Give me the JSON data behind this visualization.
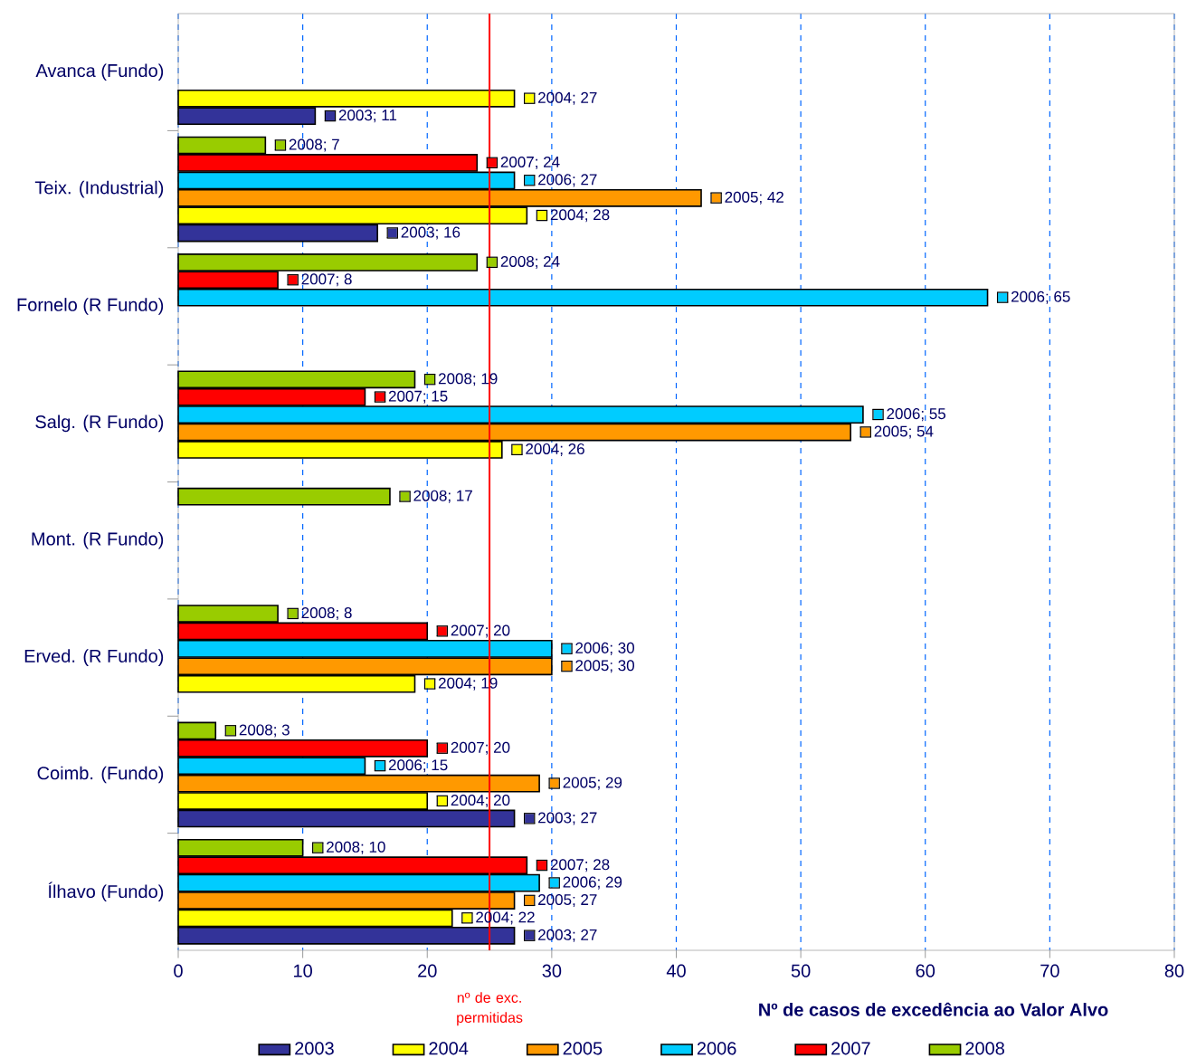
{
  "chart_data": {
    "type": "bar",
    "orientation": "horizontal",
    "xlabel": "Nº de casos de excedência ao Valor Alvo",
    "categories": [
      "Avanca (Fundo)",
      "Teix. (Industrial)",
      "Fornelo (R Fundo)",
      "Salg. (R Fundo)",
      "Mont. (R Fundo)",
      "Erved. (R Fundo)",
      "Coimb. (Fundo)",
      "Ílhavo (Fundo)"
    ],
    "series": [
      {
        "name": "2003",
        "color": "#333399",
        "values": [
          11,
          16,
          null,
          null,
          null,
          null,
          27,
          27
        ],
        "value_labels": [
          "2003; 11",
          "2003; 16",
          null,
          null,
          null,
          null,
          "2003; 27",
          "2003; 27"
        ]
      },
      {
        "name": "2004",
        "color": "#ffff00",
        "values": [
          27,
          28,
          null,
          26,
          null,
          19,
          20,
          22
        ],
        "value_labels": [
          "2004; 27",
          "2004; 28",
          null,
          "2004; 26",
          null,
          "2004; 19",
          "2004; 20",
          "2004; 22"
        ]
      },
      {
        "name": "2005",
        "color": "#ff9900",
        "values": [
          null,
          42,
          null,
          54,
          null,
          30,
          29,
          27
        ],
        "value_labels": [
          null,
          "2005; 42",
          null,
          "2005; 54",
          null,
          "2005; 30",
          "2005; 29",
          "2005; 27"
        ]
      },
      {
        "name": "2006",
        "color": "#00ccff",
        "values": [
          null,
          27,
          65,
          55,
          null,
          30,
          15,
          29
        ],
        "value_labels": [
          null,
          "2006; 27",
          "2006; 65",
          "2006; 55",
          null,
          "2006; 30",
          "2006; 15",
          "2006; 29"
        ]
      },
      {
        "name": "2007",
        "color": "#ff0000",
        "values": [
          null,
          24,
          8,
          15,
          null,
          20,
          20,
          28
        ],
        "value_labels": [
          null,
          "2007; 24",
          "2007; 8",
          "2007; 15",
          null,
          "2007; 20",
          "2007; 20",
          "2007; 28"
        ]
      },
      {
        "name": "2008",
        "color": "#99cc00",
        "values": [
          null,
          7,
          24,
          19,
          17,
          8,
          3,
          10
        ],
        "value_labels": [
          null,
          "2008; 7",
          "2008; 24",
          "2008; 19",
          "2008; 17",
          "2008; 8",
          "2008; 3",
          "2008; 10"
        ]
      }
    ],
    "xlim": [
      0,
      80
    ],
    "xticks": [
      0,
      10,
      20,
      30,
      40,
      50,
      60,
      70,
      80
    ],
    "grid": "x",
    "legend": "bottom",
    "ref_lines": [
      {
        "axis": "x",
        "value": 25,
        "label": "nº de exc. permitidas",
        "color": "#ff0000"
      }
    ]
  }
}
